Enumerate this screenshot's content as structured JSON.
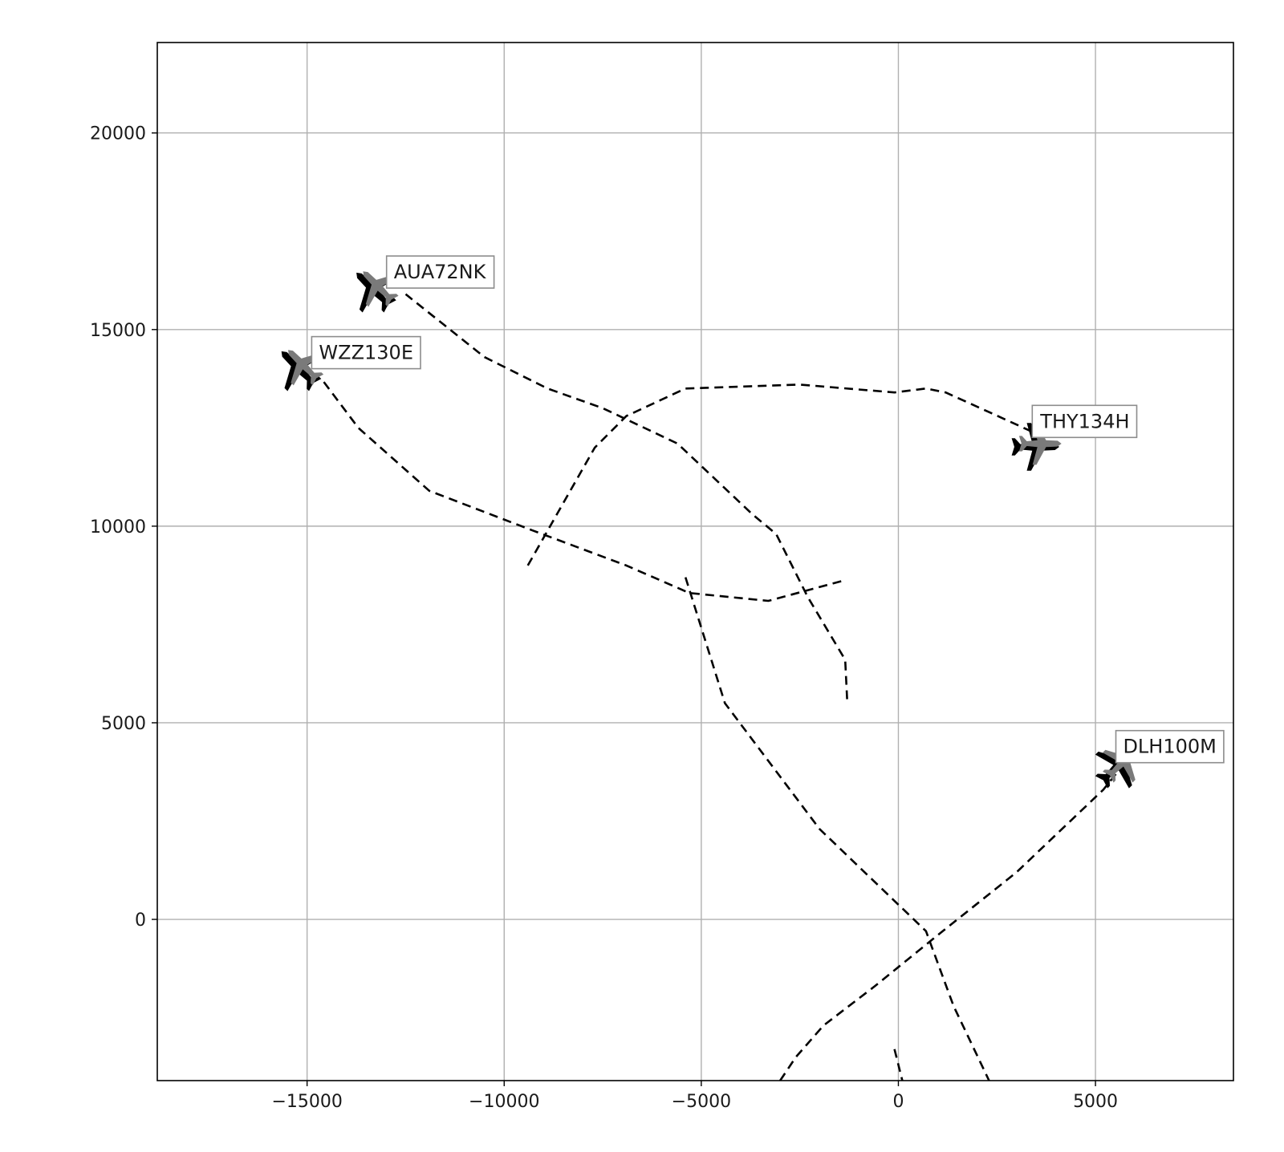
{
  "chart_data": {
    "type": "line",
    "title": "",
    "xlabel": "",
    "ylabel": "",
    "xlim": [
      -18800,
      8500
    ],
    "ylim": [
      -4100,
      22300
    ],
    "grid": true,
    "legend": "none",
    "x_ticks": [
      -15000,
      -10000,
      -5000,
      0,
      5000
    ],
    "x_tick_labels": [
      "−15000",
      "−10000",
      "−5000",
      "0",
      "5000"
    ],
    "y_ticks": [
      0,
      5000,
      10000,
      15000,
      20000
    ],
    "y_tick_labels": [
      "0",
      "5000",
      "10000",
      "15000",
      "20000"
    ],
    "line_style": "dashed",
    "line_color": "#000000",
    "series": [
      {
        "name": "AUA72NK",
        "points": [
          [
            -1300,
            5600
          ],
          [
            -1350,
            6600
          ],
          [
            -2300,
            8200
          ],
          [
            -3100,
            9800
          ],
          [
            -3700,
            10300
          ],
          [
            -5600,
            12100
          ],
          [
            -7500,
            13000
          ],
          [
            -8900,
            13500
          ],
          [
            -10500,
            14300
          ],
          [
            -12000,
            15500
          ],
          [
            -12500,
            15900
          ]
        ],
        "aircraft": {
          "x": -13200,
          "y": 16100,
          "heading": "north-west"
        }
      },
      {
        "name": "WZZ130E",
        "points": [
          [
            -1450,
            8600
          ],
          [
            -3300,
            8100
          ],
          [
            -5300,
            8300
          ],
          [
            -6900,
            9000
          ],
          [
            -9300,
            9900
          ],
          [
            -11900,
            10900
          ],
          [
            -13700,
            12500
          ],
          [
            -14600,
            13700
          ]
        ],
        "aircraft": {
          "x": -15100,
          "y": 14100,
          "heading": "north-west"
        }
      },
      {
        "name": "THY134H",
        "points": [
          [
            -9400,
            9000
          ],
          [
            -7700,
            12000
          ],
          [
            -6900,
            12800
          ],
          [
            -5400,
            13500
          ],
          [
            -2500,
            13600
          ],
          [
            -100,
            13400
          ],
          [
            700,
            13500
          ],
          [
            1200,
            13400
          ],
          [
            2300,
            12900
          ],
          [
            3400,
            12400
          ]
        ],
        "aircraft": {
          "x": 3600,
          "y": 12100,
          "heading": "east"
        }
      },
      {
        "name": "DLH100M",
        "points": [
          [
            -3000,
            -4100
          ],
          [
            -2600,
            -3500
          ],
          [
            -1900,
            -2700
          ],
          [
            -600,
            -1700
          ],
          [
            1000,
            -400
          ],
          [
            3000,
            1200
          ],
          [
            5200,
            3300
          ],
          [
            5600,
            3800
          ]
        ],
        "aircraft": {
          "x": 5700,
          "y": 4000,
          "heading": "north-east"
        }
      },
      {
        "name": "",
        "points": [
          [
            -5400,
            8700
          ],
          [
            -4400,
            5500
          ],
          [
            -2000,
            2300
          ],
          [
            700,
            -300
          ],
          [
            1400,
            -2200
          ],
          [
            2300,
            -4100
          ]
        ]
      },
      {
        "name": "",
        "points": [
          [
            -100,
            -3300
          ],
          [
            100,
            -4100
          ]
        ]
      }
    ],
    "annotations": [
      {
        "text": "AUA72NK",
        "x": -12800,
        "y": 16300
      },
      {
        "text": "WZZ130E",
        "x": -14700,
        "y": 14250
      },
      {
        "text": "THY134H",
        "x": 3600,
        "y": 12500
      },
      {
        "text": "DLH100M",
        "x": 5700,
        "y": 4230
      }
    ]
  }
}
